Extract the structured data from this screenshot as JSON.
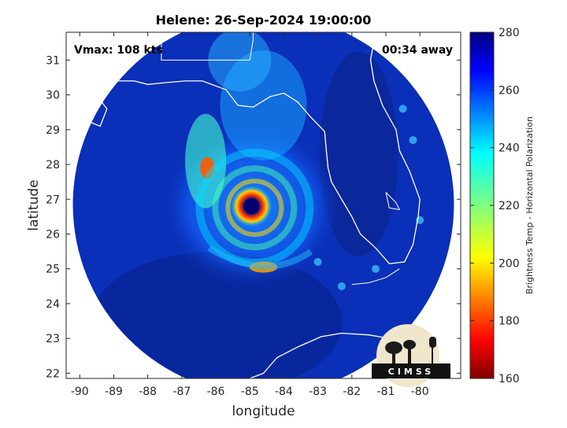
{
  "chart_data": {
    "type": "heatmap",
    "title": "Helene: 26-Sep-2024 19:00:00",
    "xlabel": "longitude",
    "ylabel": "latitude",
    "xlim": [
      -90.4,
      -78.8
    ],
    "ylim": [
      21.85,
      31.8
    ],
    "xticks": [
      -90,
      -89,
      -88,
      -87,
      -86,
      -85,
      -84,
      -83,
      -82,
      -81,
      -80
    ],
    "yticks": [
      22,
      23,
      24,
      25,
      26,
      27,
      28,
      29,
      30,
      31
    ],
    "annotations": {
      "vmax": "Vmax: 108 kts",
      "time_offset": "00:34 away"
    },
    "colorbar": {
      "label": "Brightness Temp - Horizontal Polarization",
      "range": [
        160,
        280
      ],
      "ticks": [
        160,
        180,
        200,
        220,
        240,
        260,
        280
      ],
      "colormap": "jet"
    },
    "storm_center": {
      "lon": -84.95,
      "lat": 26.8
    },
    "coverage_circle": {
      "center_lon": -84.6,
      "center_lat": 26.85,
      "radius_deg": 5.6
    },
    "logo": {
      "text": "CIMSS"
    },
    "colors": {
      "background_field": "#0a2fb8",
      "coastline": "#ffffff"
    }
  }
}
